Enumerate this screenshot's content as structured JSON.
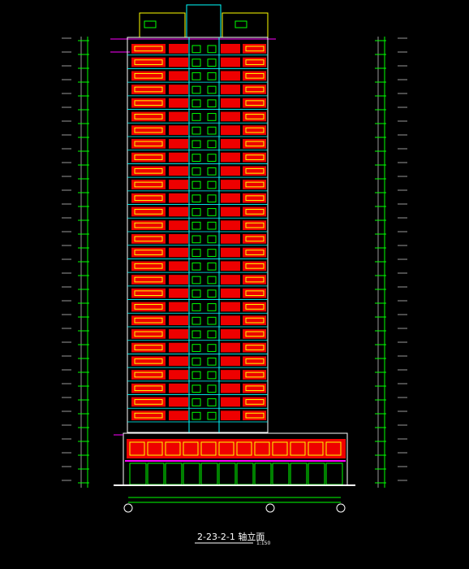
{
  "header": {
    "title": "2-23-2-1 轴立面",
    "scale": "1:150"
  }
}
